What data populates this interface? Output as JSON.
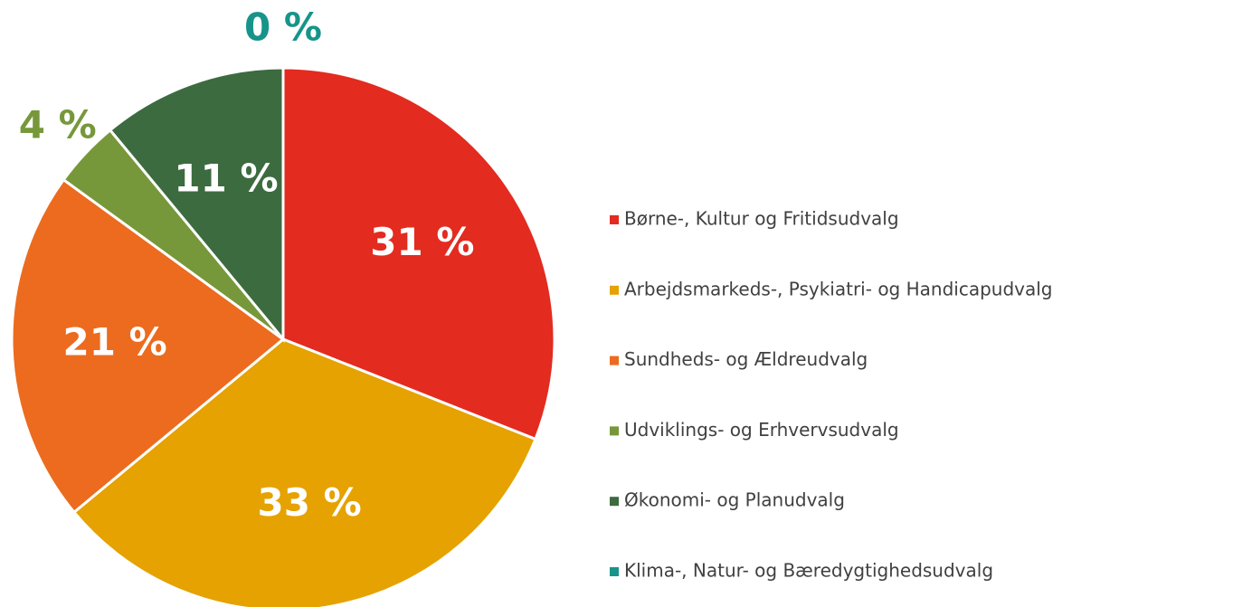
{
  "chart_data": {
    "type": "pie",
    "categories": [
      "Børne-, Kultur og Fritidsudvalg",
      "Arbejdsmarkeds-, Psykiatri- og Handicapudvalg",
      "Sundheds- og Ældreudvalg",
      "Udviklings- og Erhvervsudvalg",
      "Økonomi- og Planudvalg",
      "Klima-, Natur- og Bæredygtighedsudvalg"
    ],
    "values": [
      31,
      33,
      21,
      4,
      11,
      0
    ],
    "value_labels": [
      "31 %",
      "33 %",
      "21 %",
      "4 %",
      "11 %",
      "0 %"
    ],
    "colors": [
      "#e32b1f",
      "#e5a200",
      "#ec6b1f",
      "#77983a",
      "#3c6b3f",
      "#17948a"
    ],
    "legend": "right"
  }
}
